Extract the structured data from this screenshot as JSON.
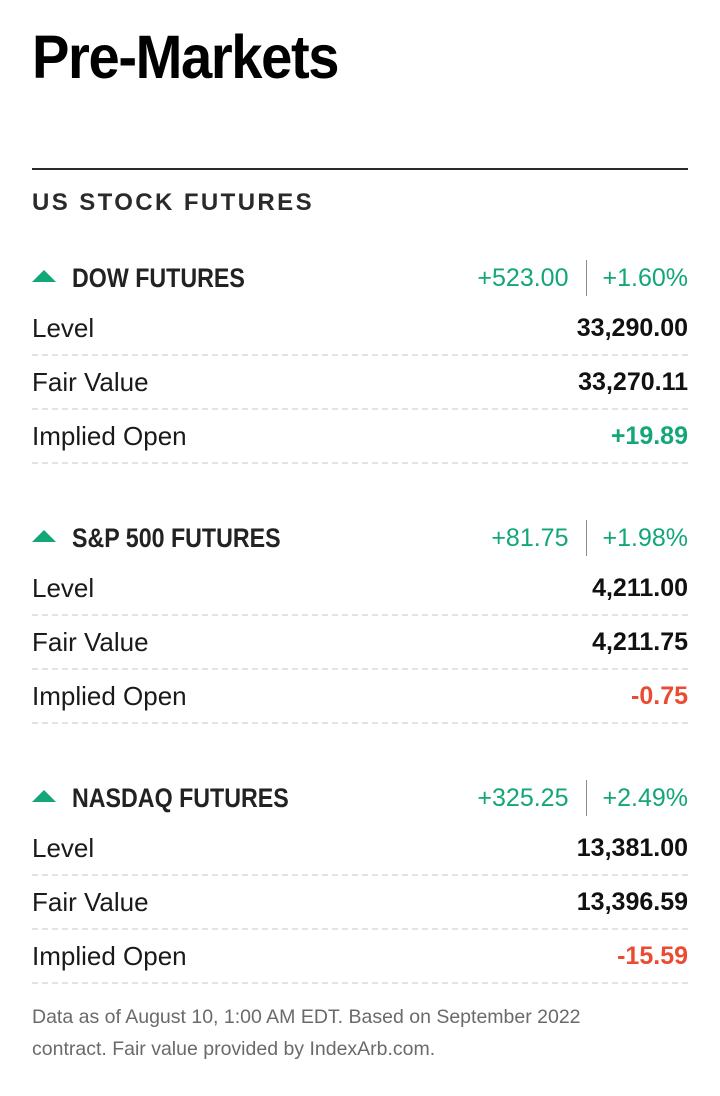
{
  "page": {
    "title": "Pre-Markets",
    "section_heading": "US STOCK FUTURES"
  },
  "colors": {
    "positive": "#12a678",
    "negative": "#ea4b32",
    "text": "#111111",
    "muted": "#6a6a6a"
  },
  "futures": [
    {
      "name": "DOW FUTURES",
      "direction_icon": "triangle-up-icon",
      "change": "+523.00",
      "change_pct": "+1.60%",
      "level_label": "Level",
      "level": "33,290.00",
      "fair_value_label": "Fair Value",
      "fair_value": "33,270.11",
      "implied_open_label": "Implied Open",
      "implied_open": "+19.89"
    },
    {
      "name": "S&P 500 FUTURES",
      "direction_icon": "triangle-up-icon",
      "change": "+81.75",
      "change_pct": "+1.98%",
      "level_label": "Level",
      "level": "4,211.00",
      "fair_value_label": "Fair Value",
      "fair_value": "4,211.75",
      "implied_open_label": "Implied Open",
      "implied_open": "-0.75"
    },
    {
      "name": "NASDAQ FUTURES",
      "direction_icon": "triangle-up-icon",
      "change": "+325.25",
      "change_pct": "+2.49%",
      "level_label": "Level",
      "level": "13,381.00",
      "fair_value_label": "Fair Value",
      "fair_value": "13,396.59",
      "implied_open_label": "Implied Open",
      "implied_open": "-15.59"
    }
  ],
  "footnote": "Data as of August 10, 1:00 AM EDT. Based on September 2022 contract. Fair value provided by IndexArb.com."
}
